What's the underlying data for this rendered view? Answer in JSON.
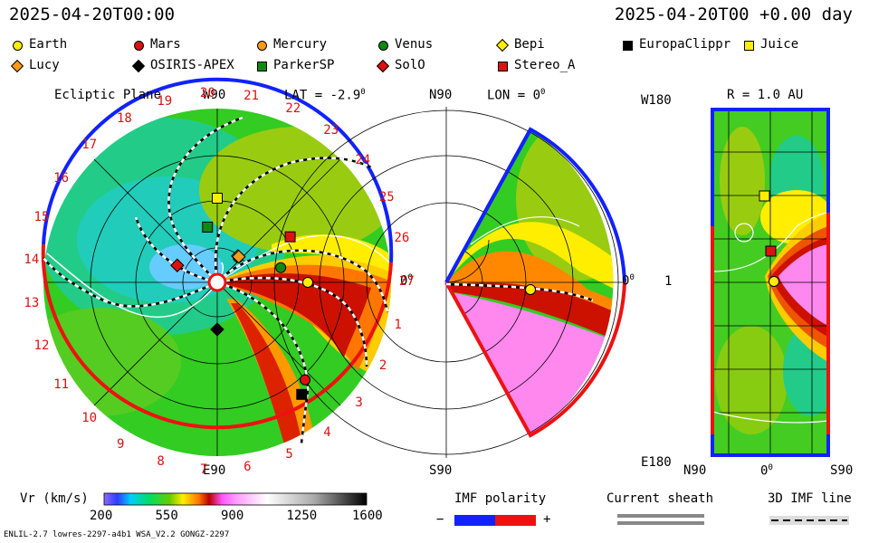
{
  "header": {
    "date_left": "2025-04-20T00:00",
    "date_right": "2025-04-20T00 +0.00 day"
  },
  "legend": [
    {
      "name": "Earth",
      "shape": "circle",
      "color": "#ffee00"
    },
    {
      "name": "Mars",
      "shape": "circle",
      "color": "#dd1111"
    },
    {
      "name": "Mercury",
      "shape": "circle",
      "color": "#ff9a1a"
    },
    {
      "name": "Venus",
      "shape": "circle",
      "color": "#118811"
    },
    {
      "name": "Bepi",
      "shape": "diamond",
      "color": "#ffee00"
    },
    {
      "name": "EuropaClippr",
      "shape": "square",
      "color": "#000000"
    },
    {
      "name": "Juice",
      "shape": "square",
      "color": "#ffee00"
    },
    {
      "name": "Lucy",
      "shape": "diamond",
      "color": "#ff9a1a"
    },
    {
      "name": "OSIRIS-APEX",
      "shape": "diamond",
      "color": "#000000"
    },
    {
      "name": "ParkerSP",
      "shape": "square",
      "color": "#118811"
    },
    {
      "name": "SolO",
      "shape": "diamond",
      "color": "#dd1111"
    },
    {
      "name": "Stereo_A",
      "shape": "square",
      "color": "#dd1111"
    }
  ],
  "ecliptic": {
    "title": "Ecliptic Plane",
    "w90": "W90",
    "e90": "E90",
    "lat": "LAT = -2.9",
    "deg": "0",
    "zero": "0",
    "carrington": [
      "1",
      "2",
      "3",
      "4",
      "5",
      "6",
      "7",
      "8",
      "9",
      "10",
      "11",
      "12",
      "13",
      "14",
      "15",
      "16",
      "17",
      "18",
      "19",
      "20",
      "21",
      "22",
      "23",
      "24",
      "25",
      "26",
      "27"
    ]
  },
  "meridional": {
    "n90": "N90",
    "s90": "S90",
    "lon": "LON = 0",
    "deg": "0",
    "zero": "0"
  },
  "map": {
    "w180": "W180",
    "e180": "E180",
    "r": "R = 1.0 AU",
    "one": "1",
    "n90": "N90",
    "zero": "0",
    "s90": "S90",
    "deg": "0"
  },
  "colorbar": {
    "label": "Vr (km/s)",
    "ticks": [
      "200",
      "550",
      "900",
      "1250",
      "1600"
    ]
  },
  "imf": {
    "label": "IMF polarity",
    "minus": "−",
    "plus": "+"
  },
  "sheath": {
    "label": "Current sheath"
  },
  "imf3d": {
    "label": "3D IMF line"
  },
  "footer": {
    "text": "ENLIL-2.7 lowres-2297-a4b1 WSA_V2.2 GONGZ-2297"
  },
  "chart_data": {
    "type": "heatmap",
    "quantity": "Vr (km/s)",
    "colorbar_range": [
      200,
      1600
    ],
    "colorbar_ticks": [
      200,
      550,
      900,
      1250,
      1600
    ],
    "ecliptic_bodies": [
      {
        "name": "Earth",
        "lon_deg": 0,
        "r_au": 1.0
      },
      {
        "name": "Mars",
        "lon_deg": -48,
        "r_au": 1.45
      },
      {
        "name": "Mercury",
        "lon_deg": 50,
        "r_au": 0.36
      },
      {
        "name": "Venus",
        "lon_deg": 13,
        "r_au": 0.72
      },
      {
        "name": "Bepi",
        "lon_deg": 52,
        "r_au": 0.37
      },
      {
        "name": "EuropaClippr",
        "lon_deg": -53,
        "r_au": 1.55
      },
      {
        "name": "Juice",
        "lon_deg": 90,
        "r_au": 0.93
      },
      {
        "name": "Lucy",
        "lon_deg": 50,
        "r_au": 0.37
      },
      {
        "name": "OSIRIS-APEX",
        "lon_deg": -90,
        "r_au": 0.52
      },
      {
        "name": "ParkerSP",
        "lon_deg": 100,
        "r_au": 0.62
      },
      {
        "name": "SolO",
        "lon_deg": 157,
        "r_au": 0.48
      },
      {
        "name": "Stereo_A",
        "lon_deg": 32,
        "r_au": 0.95
      }
    ]
  }
}
